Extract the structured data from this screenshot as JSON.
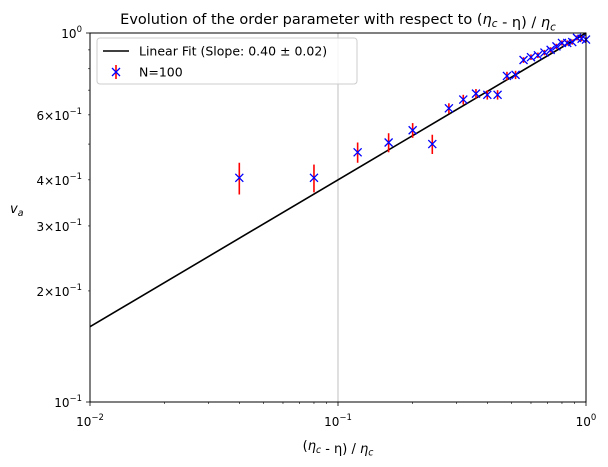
{
  "chart_data": {
    "type": "scatter",
    "title": "Evolution of the order parameter with respect to (ηc - η) / ηc",
    "xlabel": "(ηc - η) / ηc",
    "ylabel": "va",
    "xscale": "log",
    "yscale": "log",
    "xlim": [
      0.01,
      1.0
    ],
    "ylim": [
      0.1,
      1.0
    ],
    "x_major_ticks": [
      {
        "value": 0.01,
        "base": "10",
        "exp": "−2"
      },
      {
        "value": 0.1,
        "base": "10",
        "exp": "−1"
      },
      {
        "value": 1.0,
        "base": "10",
        "exp": "0"
      }
    ],
    "y_major_ticks": [
      {
        "value": 0.1,
        "base": "10",
        "exp": "−1"
      },
      {
        "value": 1.0,
        "base": "10",
        "exp": "0"
      }
    ],
    "y_minor_labeled_ticks": [
      {
        "value": 0.2,
        "mantissa": "2",
        "base": "10",
        "exp": "−1"
      },
      {
        "value": 0.3,
        "mantissa": "3",
        "base": "10",
        "exp": "−1"
      },
      {
        "value": 0.4,
        "mantissa": "4",
        "base": "10",
        "exp": "−1"
      },
      {
        "value": 0.6,
        "mantissa": "6",
        "base": "10",
        "exp": "−1"
      }
    ],
    "grid": "vertical line at x = 0.1",
    "legend_position": "upper-left",
    "colors": {
      "fit_line": "#000000",
      "marker": "#0000ff",
      "errorbar": "#ff0000",
      "grid": "#b0b0b0"
    },
    "series": [
      {
        "name": "Linear Fit (Slope: 0.40 ± 0.02)",
        "kind": "line",
        "slope": 0.4,
        "x": [
          0.01,
          1.0
        ],
        "y": [
          0.16,
          1.0
        ]
      },
      {
        "name": "N=100",
        "kind": "scatter",
        "marker": "x",
        "x": [
          0.04,
          0.08,
          0.12,
          0.16,
          0.2,
          0.24,
          0.28,
          0.32,
          0.36,
          0.4,
          0.44,
          0.48,
          0.52,
          0.56,
          0.6,
          0.64,
          0.68,
          0.72,
          0.76,
          0.8,
          0.84,
          0.88,
          0.92,
          0.96,
          1.0
        ],
        "y": [
          0.405,
          0.405,
          0.475,
          0.505,
          0.545,
          0.5,
          0.625,
          0.66,
          0.685,
          0.68,
          0.68,
          0.765,
          0.77,
          0.845,
          0.86,
          0.87,
          0.885,
          0.9,
          0.92,
          0.94,
          0.94,
          0.945,
          0.97,
          0.965,
          0.96
        ],
        "yerr": [
          0.04,
          0.035,
          0.03,
          0.03,
          0.025,
          0.03,
          0.02,
          0.02,
          0.02,
          0.02,
          0.02,
          0.02,
          0.02,
          0.015,
          0.015,
          0.015,
          0.015,
          0.015,
          0.015,
          0.015,
          0.015,
          0.015,
          0.015,
          0.015,
          0.015
        ]
      }
    ]
  }
}
